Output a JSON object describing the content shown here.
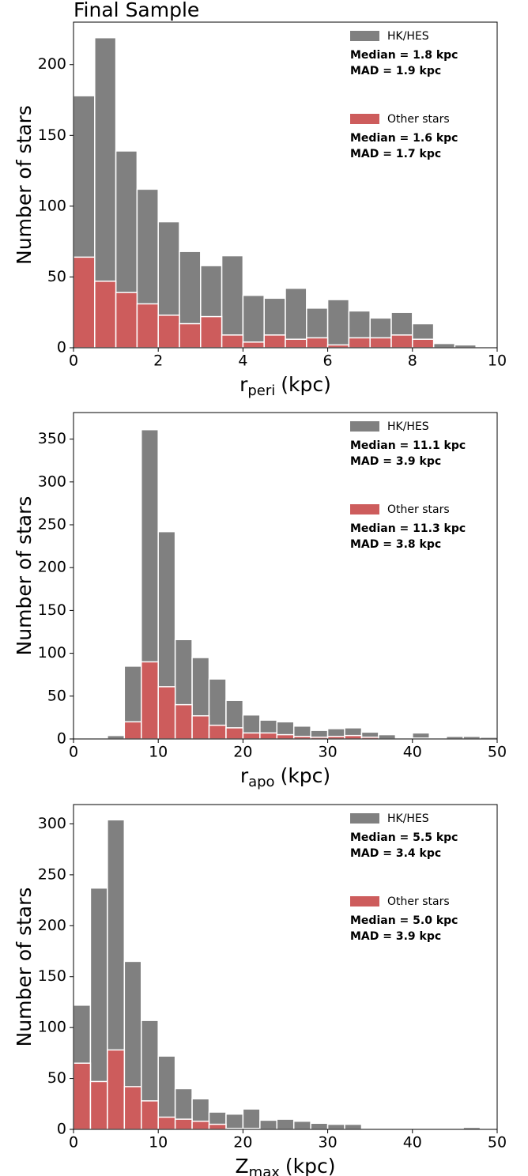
{
  "chart_data": [
    {
      "type": "histogram",
      "title": "Final Sample",
      "x_label": "r",
      "x_label_sub": "peri",
      "x_label_unit": "(kpc)",
      "y_label": "Number of stars",
      "bins": [
        0,
        0.5,
        1,
        1.5,
        2,
        2.5,
        3,
        3.5,
        4,
        4.5,
        5,
        5.5,
        6,
        6.5,
        7,
        7.5,
        8,
        8.5,
        9,
        9.5
      ],
      "series": [
        {
          "name": "HK/HES",
          "color": "#808080",
          "stats": [
            "Median = 1.8 kpc",
            "MAD = 1.9 kpc"
          ],
          "values": [
            178,
            219,
            139,
            112,
            89,
            68,
            58,
            65,
            37,
            35,
            42,
            28,
            34,
            26,
            21,
            25,
            17,
            3,
            2
          ]
        },
        {
          "name": "Other stars",
          "color": "#cd5c5c",
          "stats": [
            "Median = 1.6 kpc",
            "MAD = 1.7 kpc"
          ],
          "values": [
            64,
            47,
            39,
            31,
            23,
            17,
            22,
            9,
            4,
            9,
            6,
            7,
            2,
            7,
            7,
            9,
            6,
            0,
            0
          ]
        }
      ],
      "xlim": [
        0,
        10
      ],
      "xticks": [
        0,
        2,
        4,
        6,
        8,
        10
      ],
      "ylim": [
        0,
        230
      ],
      "yticks": [
        0,
        50,
        100,
        150,
        200
      ]
    },
    {
      "type": "histogram",
      "x_label": "r",
      "x_label_sub": "apo",
      "x_label_unit": "(kpc)",
      "y_label": "Number of stars",
      "bins": [
        0,
        2,
        4,
        6,
        8,
        10,
        12,
        14,
        16,
        18,
        20,
        22,
        24,
        26,
        28,
        30,
        32,
        34,
        36,
        38,
        40,
        42,
        44,
        46,
        48,
        50
      ],
      "series": [
        {
          "name": "HK/HES",
          "color": "#808080",
          "stats": [
            "Median = 11.1 kpc",
            "MAD = 3.9 kpc"
          ],
          "values": [
            0,
            0,
            4,
            85,
            361,
            242,
            116,
            95,
            70,
            45,
            28,
            22,
            20,
            15,
            10,
            12,
            13,
            8,
            5,
            0,
            7,
            1,
            3,
            3,
            2
          ]
        },
        {
          "name": "Other stars",
          "color": "#cd5c5c",
          "stats": [
            "Median = 11.3 kpc",
            "MAD = 3.8 kpc"
          ],
          "values": [
            0,
            0,
            0,
            20,
            90,
            61,
            40,
            27,
            16,
            13,
            7,
            7,
            5,
            3,
            2,
            3,
            4,
            2,
            0,
            0,
            1,
            0,
            0,
            0,
            0
          ]
        }
      ],
      "xlim": [
        0,
        50
      ],
      "xticks": [
        0,
        10,
        20,
        30,
        40,
        50
      ],
      "ylim": [
        0,
        381
      ],
      "yticks": [
        0,
        50,
        100,
        150,
        200,
        250,
        300,
        350
      ]
    },
    {
      "type": "histogram",
      "x_label": "Z",
      "x_label_sub": "max",
      "x_label_unit": "(kpc)",
      "y_label": "Number of stars",
      "bins": [
        0,
        2,
        4,
        6,
        8,
        10,
        12,
        14,
        16,
        18,
        20,
        22,
        24,
        26,
        28,
        30,
        32,
        34,
        36,
        38,
        40,
        42,
        44,
        46,
        48
      ],
      "series": [
        {
          "name": "HK/HES",
          "color": "#808080",
          "stats": [
            "Median = 5.5 kpc",
            "MAD = 3.4 kpc"
          ],
          "values": [
            122,
            237,
            304,
            165,
            107,
            72,
            40,
            30,
            17,
            15,
            20,
            9,
            10,
            8,
            6,
            5,
            5,
            0,
            1,
            0,
            1,
            0,
            0,
            2
          ]
        },
        {
          "name": "Other stars",
          "color": "#cd5c5c",
          "stats": [
            "Median = 5.0 kpc",
            "MAD = 3.9 kpc"
          ],
          "values": [
            65,
            47,
            78,
            42,
            28,
            12,
            10,
            8,
            5,
            1,
            1,
            0,
            0,
            0,
            0,
            0,
            0,
            0,
            0,
            0,
            0,
            0,
            0,
            0
          ]
        }
      ],
      "xlim": [
        0,
        50
      ],
      "xticks": [
        0,
        10,
        20,
        30,
        40,
        50
      ],
      "ylim": [
        0,
        319
      ],
      "yticks": [
        0,
        50,
        100,
        150,
        200,
        250,
        300
      ]
    }
  ]
}
